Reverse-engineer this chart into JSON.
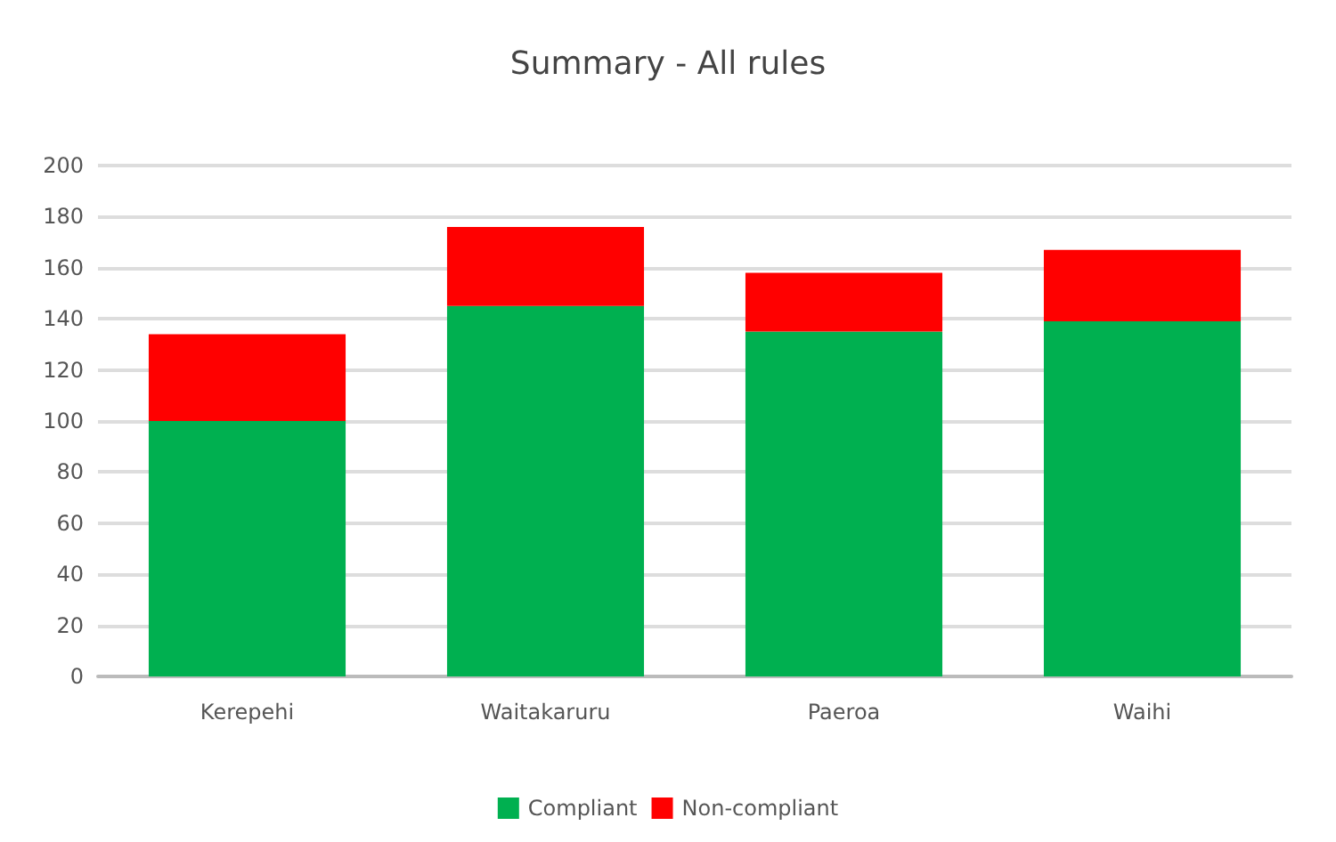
{
  "chart_data": {
    "type": "bar",
    "title": "Summary - All rules",
    "stacked": true,
    "categories": [
      "Kerepehi",
      "Waitakaruru",
      "Paeroa",
      "Waihi"
    ],
    "series": [
      {
        "name": "Compliant",
        "color": "#00b050",
        "values": [
          100,
          145,
          135,
          139
        ]
      },
      {
        "name": "Non-compliant",
        "color": "#ff0000",
        "values": [
          34,
          31,
          23,
          28
        ]
      }
    ],
    "ylim": [
      0,
      200
    ],
    "yticks": [
      0,
      20,
      40,
      60,
      80,
      100,
      120,
      140,
      160,
      180,
      200
    ],
    "grid": "y",
    "legend": "bottom"
  }
}
